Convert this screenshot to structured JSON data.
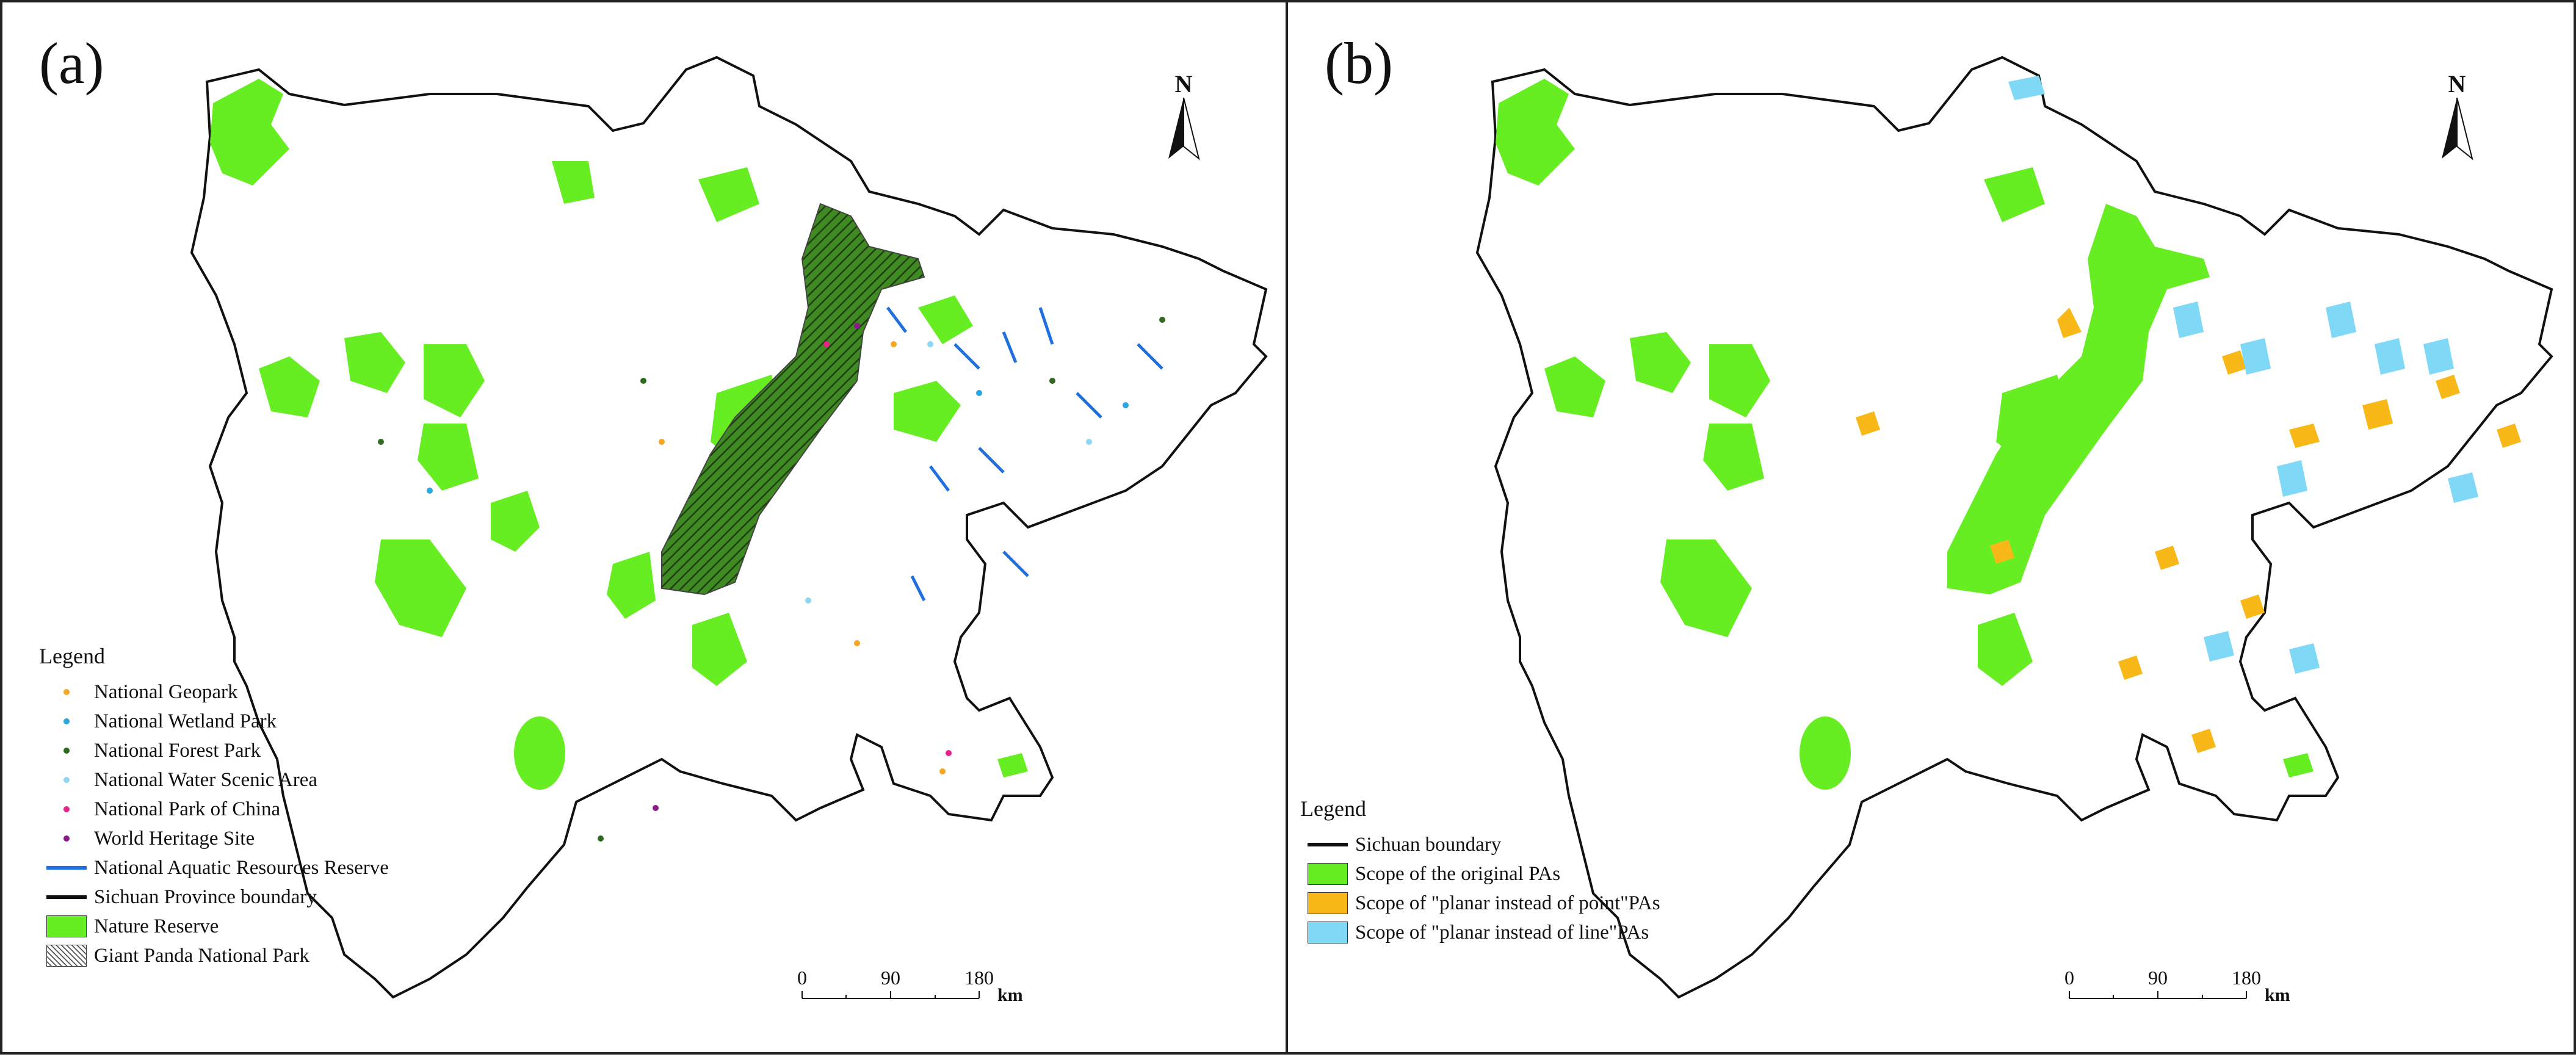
{
  "panels": [
    {
      "label": "(a)",
      "north": "N",
      "legend": {
        "title": "Legend",
        "items": [
          {
            "label": "National Geopark",
            "symbol": "dot",
            "color": "#f5a623"
          },
          {
            "label": "National Wetland Park",
            "symbol": "dot",
            "color": "#2aa6e0"
          },
          {
            "label": "National Forest Park",
            "symbol": "dot",
            "color": "#2e6b1f"
          },
          {
            "label": "National Water Scenic Area",
            "symbol": "dot",
            "color": "#8fd6f0"
          },
          {
            "label": "National Park of China",
            "symbol": "dot",
            "color": "#e8208a"
          },
          {
            "label": "World Heritage Site",
            "symbol": "dot",
            "color": "#8b1a8b"
          },
          {
            "label": "National Aquatic Resources Reserve",
            "symbol": "line",
            "color": "#1f6fe0"
          },
          {
            "label": "Sichuan Province boundary",
            "symbol": "line",
            "color": "#111111"
          },
          {
            "label": "Nature Reserve",
            "symbol": "box",
            "color": "#66ee22"
          },
          {
            "label": "Giant Panda National Park",
            "symbol": "hatch",
            "color": "#555555"
          }
        ]
      },
      "scale": {
        "ticks": [
          "0",
          "90",
          "180"
        ],
        "unit": "km"
      }
    },
    {
      "label": "(b)",
      "north": "N",
      "legend": {
        "title": "Legend",
        "items": [
          {
            "label": "Sichuan boundary",
            "symbol": "line",
            "color": "#111111"
          },
          {
            "label": "Scope of the original PAs",
            "symbol": "box",
            "color": "#66ee22"
          },
          {
            "label": "Scope of \"planar instead of point\"PAs",
            "symbol": "box",
            "color": "#f8b818"
          },
          {
            "label": "Scope of \"planar instead of line\"PAs",
            "symbol": "box",
            "color": "#7fd8f5"
          }
        ]
      },
      "scale": {
        "ticks": [
          "0",
          "90",
          "180"
        ],
        "unit": "km"
      }
    }
  ]
}
